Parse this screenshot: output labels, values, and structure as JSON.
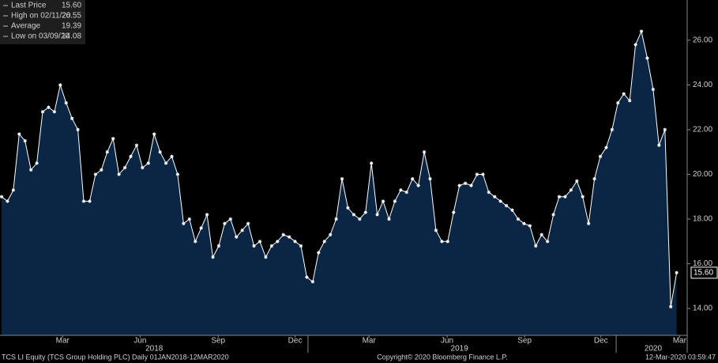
{
  "chart_data": {
    "type": "area",
    "color": "#ffffff",
    "fill": "#0b2545",
    "values": [
      19.0,
      18.8,
      19.3,
      21.8,
      21.5,
      20.2,
      20.5,
      22.8,
      23.0,
      22.8,
      24.0,
      23.2,
      22.5,
      22.0,
      18.8,
      18.8,
      20.0,
      20.2,
      21.0,
      21.6,
      20.0,
      20.3,
      20.8,
      21.3,
      20.3,
      20.5,
      21.8,
      21.0,
      20.5,
      20.8,
      20.0,
      17.8,
      18.0,
      17.0,
      17.6,
      18.2,
      16.3,
      16.8,
      17.8,
      18.0,
      17.2,
      17.5,
      17.8,
      16.8,
      17.0,
      16.3,
      16.8,
      17.0,
      17.3,
      17.2,
      17.0,
      16.8,
      15.4,
      15.2,
      16.5,
      17.0,
      17.3,
      18.0,
      19.8,
      18.5,
      18.2,
      18.0,
      18.3,
      20.5,
      18.2,
      18.8,
      18.0,
      18.8,
      19.3,
      19.2,
      19.8,
      19.5,
      21.0,
      19.8,
      17.5,
      17.0,
      17.0,
      18.3,
      19.5,
      19.6,
      19.5,
      20.0,
      20.0,
      19.2,
      19.0,
      18.8,
      18.6,
      18.4,
      18.0,
      17.8,
      17.7,
      16.8,
      17.3,
      17.0,
      18.2,
      19.0,
      19.0,
      19.3,
      19.7,
      19.0,
      17.8,
      19.8,
      20.8,
      21.2,
      22.0,
      23.2,
      23.6,
      23.3,
      25.8,
      26.4,
      25.2,
      23.8,
      21.3,
      22.0,
      14.08,
      15.6
    ],
    "xlim": [
      0,
      116.8
    ],
    "xticks": [
      {
        "value": 10.4,
        "label": "Mar"
      },
      {
        "value": 23.6,
        "label": "Jun"
      },
      {
        "value": 36.9,
        "label": "Sep"
      },
      {
        "value": 50,
        "label": "Dec"
      },
      {
        "value": 62.6,
        "label": "Mar"
      },
      {
        "value": 75.9,
        "label": "Jun"
      },
      {
        "value": 89.1,
        "label": "Sep"
      },
      {
        "value": 102.1,
        "label": "Dec"
      },
      {
        "value": 115.5,
        "label": "Mar"
      }
    ],
    "year_labels": [
      {
        "value": 26,
        "label": "2018"
      },
      {
        "value": 78,
        "label": "2019"
      },
      {
        "value": 111,
        "label": "2020"
      }
    ],
    "year_breaks": [
      52.2,
      104.7
    ],
    "ylim": [
      12.8,
      27.8
    ],
    "yticks": [
      {
        "value": 14,
        "label": "14.00"
      },
      {
        "value": 16,
        "label": "16.00"
      },
      {
        "value": 18,
        "label": "18.00"
      },
      {
        "value": 20,
        "label": "20.00"
      },
      {
        "value": 22,
        "label": "22.00"
      },
      {
        "value": 24,
        "label": "24.00"
      },
      {
        "value": 26,
        "label": "26.00"
      }
    ],
    "last_price": {
      "value": 15.6,
      "label": "15.60"
    },
    "legend": [
      {
        "name": "Last Price",
        "value": "15.60"
      },
      {
        "name": "High on 02/11/20",
        "value": "26.55"
      },
      {
        "name": "Average",
        "value": "19.39"
      },
      {
        "name": "Low on 03/09/20",
        "value": "14.08"
      }
    ],
    "footer": {
      "left": "TCS LI Equity (TCS Group Holding PLC)  Daily 01JAN2018-12MAR2020",
      "center": "Copyright© 2020 Bloomberg Finance L.P.",
      "right": "12-Mar-2020 03:59:47"
    }
  }
}
